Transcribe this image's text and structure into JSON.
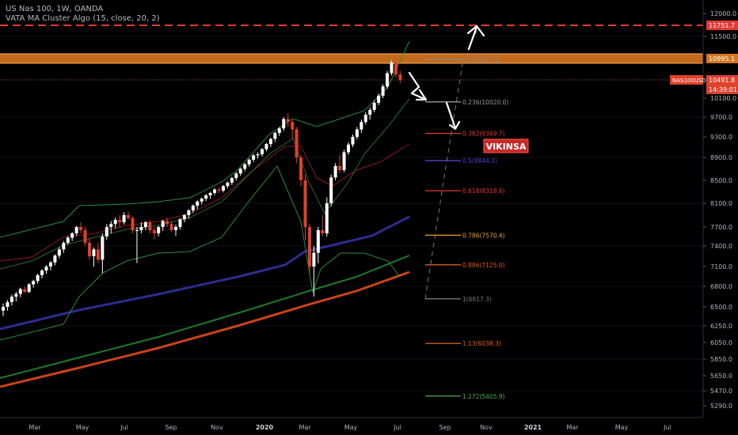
{
  "header": {
    "symbol_line": "US Nas 100, 1W, OANDA",
    "indicator_line": "VATA MA Cluster Algo (15, close, 20, 2)"
  },
  "colors": {
    "background": "#000000",
    "up_candle": "#ffffff",
    "down_candle": "#e0412b",
    "resistance_band": "#d9751f",
    "dashed_resistance": "#e53935",
    "fib_line": "#888888",
    "ma_blue": "#2a2e8c",
    "ma_orange": "#c94319",
    "ma_green": "#1f7a2a",
    "bollinger": "#2e8b3a",
    "ma_red": "#8b1a1a",
    "watermark_bg": "#c62828"
  },
  "chart_data": {
    "type": "candlestick",
    "symbol": "NAS100USD",
    "timeframe": "1W",
    "price_axis": {
      "ticks": [
        12000,
        11500,
        10100,
        9700,
        9300,
        8900,
        8500,
        8100,
        7700,
        7400,
        7100,
        6800,
        6500,
        6250,
        6050,
        5850,
        5650,
        5470,
        5290
      ],
      "tick_labels": [
        "12000.0",
        "11500.0",
        "10100.0",
        "9700.0",
        "9300.0",
        "8900.0",
        "8500.0",
        "8100.0",
        "7700.0",
        "7400.0",
        "7100.0",
        "6800.0",
        "6500.0",
        "6250.0",
        "6050.0",
        "5850.0",
        "5650.0",
        "5470.0",
        "5290.0"
      ],
      "badges": [
        {
          "label": "",
          "value": "11751.7",
          "color": "#e53935"
        },
        {
          "label": "",
          "value": "10995.1",
          "color": "#d9751f"
        },
        {
          "label": "NAS100USD",
          "value": "10491.8",
          "color": "#e0412b"
        },
        {
          "label": "",
          "value": "14:39:01",
          "color": "#e0412b"
        }
      ]
    },
    "time_axis": [
      "Mar",
      "May",
      "Jul",
      "Sep",
      "Nov",
      "2020",
      "Mar",
      "May",
      "Jul",
      "Sep",
      "Nov",
      "2021",
      "Mar",
      "May",
      "Jul"
    ],
    "candles": [
      [
        6450,
        6550,
        6380,
        6500
      ],
      [
        6500,
        6600,
        6450,
        6570
      ],
      [
        6570,
        6680,
        6520,
        6650
      ],
      [
        6650,
        6720,
        6580,
        6690
      ],
      [
        6690,
        6780,
        6640,
        6760
      ],
      [
        6760,
        6800,
        6700,
        6720
      ],
      [
        6720,
        6850,
        6700,
        6830
      ],
      [
        6830,
        6900,
        6780,
        6880
      ],
      [
        6880,
        6990,
        6840,
        6970
      ],
      [
        6970,
        7060,
        6920,
        7040
      ],
      [
        7040,
        7120,
        6990,
        7100
      ],
      [
        7100,
        7180,
        7040,
        7160
      ],
      [
        7160,
        7280,
        7120,
        7260
      ],
      [
        7260,
        7380,
        7220,
        7350
      ],
      [
        7350,
        7480,
        7300,
        7450
      ],
      [
        7450,
        7560,
        7420,
        7530
      ],
      [
        7530,
        7620,
        7480,
        7600
      ],
      [
        7600,
        7720,
        7560,
        7700
      ],
      [
        7700,
        7780,
        7600,
        7650
      ],
      [
        7650,
        7700,
        7400,
        7450
      ],
      [
        7450,
        7520,
        7200,
        7250
      ],
      [
        7250,
        7380,
        7100,
        7350
      ],
      [
        7350,
        7450,
        7150,
        7200
      ],
      [
        7200,
        7600,
        7000,
        7550
      ],
      [
        7550,
        7750,
        7500,
        7700
      ],
      [
        7700,
        7800,
        7600,
        7750
      ],
      [
        7750,
        7860,
        7680,
        7820
      ],
      [
        7820,
        7900,
        7700,
        7780
      ],
      [
        7780,
        7950,
        7740,
        7900
      ],
      [
        7900,
        7960,
        7820,
        7850
      ],
      [
        7850,
        7880,
        7600,
        7650
      ],
      [
        7650,
        7700,
        7150,
        7650
      ],
      [
        7650,
        7780,
        7600,
        7700
      ],
      [
        7700,
        7800,
        7650,
        7780
      ],
      [
        7780,
        7820,
        7600,
        7650
      ],
      [
        7650,
        7700,
        7500,
        7600
      ],
      [
        7600,
        7720,
        7550,
        7700
      ],
      [
        7700,
        7820,
        7640,
        7800
      ],
      [
        7800,
        7860,
        7700,
        7750
      ],
      [
        7750,
        7800,
        7620,
        7650
      ],
      [
        7650,
        7740,
        7560,
        7700
      ],
      [
        7700,
        7850,
        7660,
        7830
      ],
      [
        7830,
        7920,
        7780,
        7900
      ],
      [
        7900,
        8000,
        7840,
        7980
      ],
      [
        7980,
        8080,
        7940,
        8060
      ],
      [
        8060,
        8150,
        8000,
        8130
      ],
      [
        8130,
        8200,
        8080,
        8180
      ],
      [
        8180,
        8260,
        8140,
        8240
      ],
      [
        8240,
        8300,
        8180,
        8280
      ],
      [
        8280,
        8360,
        8240,
        8340
      ],
      [
        8340,
        8380,
        8280,
        8320
      ],
      [
        8320,
        8420,
        8290,
        8400
      ],
      [
        8400,
        8480,
        8360,
        8460
      ],
      [
        8460,
        8560,
        8420,
        8540
      ],
      [
        8540,
        8640,
        8500,
        8620
      ],
      [
        8620,
        8720,
        8580,
        8700
      ],
      [
        8700,
        8800,
        8660,
        8780
      ],
      [
        8780,
        8880,
        8740,
        8860
      ],
      [
        8860,
        8960,
        8820,
        8940
      ],
      [
        8940,
        9000,
        8880,
        8960
      ],
      [
        8960,
        9080,
        8920,
        9060
      ],
      [
        9060,
        9180,
        9020,
        9160
      ],
      [
        9160,
        9280,
        9100,
        9260
      ],
      [
        9260,
        9400,
        9200,
        9380
      ],
      [
        9380,
        9500,
        9320,
        9470
      ],
      [
        9470,
        9700,
        9420,
        9660
      ],
      [
        9660,
        9780,
        9500,
        9600
      ],
      [
        9600,
        9650,
        9250,
        9450
      ],
      [
        9450,
        9500,
        8800,
        8900
      ],
      [
        8900,
        8950,
        8400,
        8500
      ],
      [
        8500,
        8600,
        7500,
        7700
      ],
      [
        7700,
        7750,
        7000,
        7100
      ],
      [
        7100,
        7400,
        6650,
        7300
      ],
      [
        7300,
        7700,
        7150,
        7650
      ],
      [
        7650,
        7900,
        7550,
        7600
      ],
      [
        7600,
        8200,
        7550,
        8100
      ],
      [
        8100,
        8600,
        8050,
        8550
      ],
      [
        8550,
        8800,
        8500,
        8750
      ],
      [
        8750,
        8950,
        8620,
        8680
      ],
      [
        8680,
        9050,
        8640,
        9000
      ],
      [
        9000,
        9200,
        8950,
        9150
      ],
      [
        9150,
        9350,
        9100,
        9300
      ],
      [
        9300,
        9500,
        9250,
        9450
      ],
      [
        9450,
        9650,
        9380,
        9600
      ],
      [
        9600,
        9800,
        9550,
        9750
      ],
      [
        9750,
        9900,
        9650,
        9850
      ],
      [
        9850,
        10050,
        9800,
        10000
      ],
      [
        10000,
        10200,
        9950,
        10150
      ],
      [
        10150,
        10400,
        10100,
        10350
      ],
      [
        10350,
        10700,
        10300,
        10650
      ],
      [
        10650,
        10950,
        10600,
        10900
      ],
      [
        10900,
        10980,
        10550,
        10620
      ],
      [
        10620,
        10700,
        10420,
        10492
      ]
    ],
    "moving_averages": [
      {
        "name": "ma_blue",
        "values": [
          6450,
          6800,
          7050,
          7250,
          7400,
          7500,
          7650,
          7850
        ]
      },
      {
        "name": "ma_orange",
        "values": [
          5500,
          5800,
          6050,
          6250,
          6500,
          6800,
          7050
        ]
      },
      {
        "name": "ma_green",
        "values": [
          5700,
          6050,
          6300,
          6550,
          6800,
          7000,
          7250
        ]
      }
    ],
    "levels": [
      {
        "label": "",
        "value": 11751.7,
        "style": "dashed-red"
      },
      {
        "label": "",
        "value": 10995.1,
        "style": "orange-band"
      }
    ],
    "fibonacci": [
      {
        "label": "0.1(10971.1)",
        "value": 10971.1,
        "color": "#888888"
      },
      {
        "label": "0.236(10020.0)",
        "value": 10020.0,
        "color": "#9a9a9a"
      },
      {
        "label": "0.382(9369.7)",
        "value": 9369.7,
        "color": "#e53935"
      },
      {
        "label": "0.5(8844.2)",
        "value": 8844.2,
        "color": "#4b45c9"
      },
      {
        "label": "0.618(8318.6)",
        "value": 8318.6,
        "color": "#e53935"
      },
      {
        "label": "0.786(7570.4)",
        "value": 7570.4,
        "color": "#f0a020"
      },
      {
        "label": "0.886(7125.0)",
        "value": 7125.0,
        "color": "#e05a2a"
      },
      {
        "label": "1(6617.3)",
        "value": 6617.3,
        "color": "#777777"
      },
      {
        "label": "1.13(6038.3)",
        "value": 6038.3,
        "color": "#e0621e"
      },
      {
        "label": "1.272(5405.9)",
        "value": 5405.9,
        "color": "#4caf50"
      }
    ],
    "watermark": "VIKINSA"
  }
}
